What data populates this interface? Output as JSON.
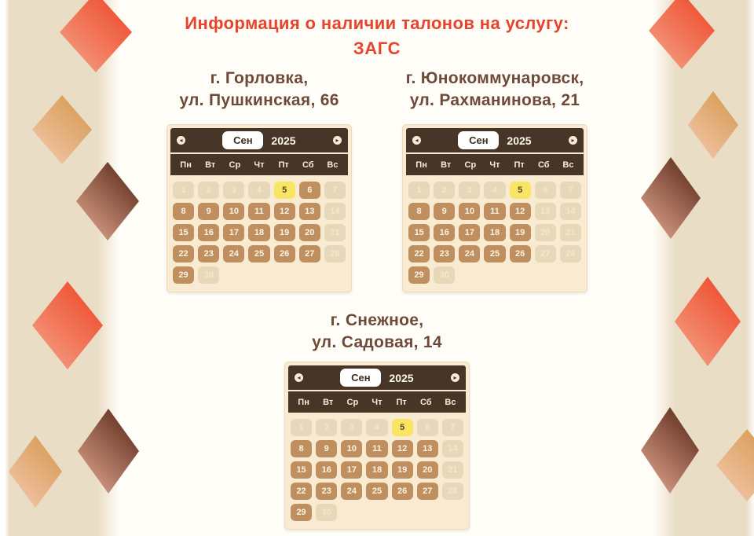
{
  "page": {
    "title_line1": "Информация о наличии талонов на услугу:",
    "title_line2": "ЗАГС"
  },
  "calendar_common": {
    "month_label": "Сен",
    "year_label": "2025",
    "weekdays": [
      "Пн",
      "Вт",
      "Ср",
      "Чт",
      "Пт",
      "Сб",
      "Вс"
    ],
    "prev_icon": "◂",
    "next_icon": "▸"
  },
  "colors": {
    "title_red": "#e8432b",
    "address_brown": "#6e4a38",
    "calendar_header_bg": "#473627",
    "calendar_body_bg": "#f8ebd1",
    "day_available_bg": "#c08f60",
    "day_unavailable_bg": "#e8d8ba",
    "day_selected_bg": "#f8e564",
    "side_band_beige": "#e9ddc5",
    "diamond_red": "#ee4829",
    "diamond_tan": "#d59a51",
    "diamond_brown": "#5e2c1b"
  },
  "locations": [
    {
      "city": "г. Горловка,",
      "address": "ул. Пушкинская, 66",
      "calendar": {
        "days": [
          {
            "d": 1,
            "s": "unavailable"
          },
          {
            "d": 2,
            "s": "unavailable"
          },
          {
            "d": 3,
            "s": "unavailable"
          },
          {
            "d": 4,
            "s": "unavailable"
          },
          {
            "d": 5,
            "s": "selected"
          },
          {
            "d": 6,
            "s": "available"
          },
          {
            "d": 7,
            "s": "unavailable"
          },
          {
            "d": 8,
            "s": "available"
          },
          {
            "d": 9,
            "s": "available"
          },
          {
            "d": 10,
            "s": "available"
          },
          {
            "d": 11,
            "s": "available"
          },
          {
            "d": 12,
            "s": "available"
          },
          {
            "d": 13,
            "s": "available"
          },
          {
            "d": 14,
            "s": "unavailable"
          },
          {
            "d": 15,
            "s": "available"
          },
          {
            "d": 16,
            "s": "available"
          },
          {
            "d": 17,
            "s": "available"
          },
          {
            "d": 18,
            "s": "available"
          },
          {
            "d": 19,
            "s": "available"
          },
          {
            "d": 20,
            "s": "available"
          },
          {
            "d": 21,
            "s": "unavailable"
          },
          {
            "d": 22,
            "s": "available"
          },
          {
            "d": 23,
            "s": "available"
          },
          {
            "d": 24,
            "s": "available"
          },
          {
            "d": 25,
            "s": "available"
          },
          {
            "d": 26,
            "s": "available"
          },
          {
            "d": 27,
            "s": "available"
          },
          {
            "d": 28,
            "s": "unavailable"
          },
          {
            "d": 29,
            "s": "available"
          },
          {
            "d": 30,
            "s": "unavailable"
          }
        ]
      }
    },
    {
      "city": "г. Юнокоммунаровск,",
      "address": "ул. Рахманинова, 21",
      "calendar": {
        "days": [
          {
            "d": 1,
            "s": "unavailable"
          },
          {
            "d": 2,
            "s": "unavailable"
          },
          {
            "d": 3,
            "s": "unavailable"
          },
          {
            "d": 4,
            "s": "unavailable"
          },
          {
            "d": 5,
            "s": "selected"
          },
          {
            "d": 6,
            "s": "unavailable"
          },
          {
            "d": 7,
            "s": "unavailable"
          },
          {
            "d": 8,
            "s": "available"
          },
          {
            "d": 9,
            "s": "available"
          },
          {
            "d": 10,
            "s": "available"
          },
          {
            "d": 11,
            "s": "available"
          },
          {
            "d": 12,
            "s": "available"
          },
          {
            "d": 13,
            "s": "unavailable"
          },
          {
            "d": 14,
            "s": "unavailable"
          },
          {
            "d": 15,
            "s": "available"
          },
          {
            "d": 16,
            "s": "available"
          },
          {
            "d": 17,
            "s": "available"
          },
          {
            "d": 18,
            "s": "available"
          },
          {
            "d": 19,
            "s": "available"
          },
          {
            "d": 20,
            "s": "unavailable"
          },
          {
            "d": 21,
            "s": "unavailable"
          },
          {
            "d": 22,
            "s": "available"
          },
          {
            "d": 23,
            "s": "available"
          },
          {
            "d": 24,
            "s": "available"
          },
          {
            "d": 25,
            "s": "available"
          },
          {
            "d": 26,
            "s": "available"
          },
          {
            "d": 27,
            "s": "unavailable"
          },
          {
            "d": 28,
            "s": "unavailable"
          },
          {
            "d": 29,
            "s": "available"
          },
          {
            "d": 30,
            "s": "unavailable"
          }
        ]
      }
    },
    {
      "city": "г. Снежное,",
      "address": "ул. Садовая, 14",
      "calendar": {
        "days": [
          {
            "d": 1,
            "s": "unavailable"
          },
          {
            "d": 2,
            "s": "unavailable"
          },
          {
            "d": 3,
            "s": "unavailable"
          },
          {
            "d": 4,
            "s": "unavailable"
          },
          {
            "d": 5,
            "s": "selected"
          },
          {
            "d": 6,
            "s": "unavailable"
          },
          {
            "d": 7,
            "s": "unavailable"
          },
          {
            "d": 8,
            "s": "available"
          },
          {
            "d": 9,
            "s": "available"
          },
          {
            "d": 10,
            "s": "available"
          },
          {
            "d": 11,
            "s": "available"
          },
          {
            "d": 12,
            "s": "available"
          },
          {
            "d": 13,
            "s": "available"
          },
          {
            "d": 14,
            "s": "unavailable"
          },
          {
            "d": 15,
            "s": "available"
          },
          {
            "d": 16,
            "s": "available"
          },
          {
            "d": 17,
            "s": "available"
          },
          {
            "d": 18,
            "s": "available"
          },
          {
            "d": 19,
            "s": "available"
          },
          {
            "d": 20,
            "s": "available"
          },
          {
            "d": 21,
            "s": "unavailable"
          },
          {
            "d": 22,
            "s": "available"
          },
          {
            "d": 23,
            "s": "available"
          },
          {
            "d": 24,
            "s": "available"
          },
          {
            "d": 25,
            "s": "available"
          },
          {
            "d": 26,
            "s": "available"
          },
          {
            "d": 27,
            "s": "available"
          },
          {
            "d": 28,
            "s": "unavailable"
          },
          {
            "d": 29,
            "s": "available"
          },
          {
            "d": 30,
            "s": "unavailable"
          }
        ]
      }
    }
  ]
}
